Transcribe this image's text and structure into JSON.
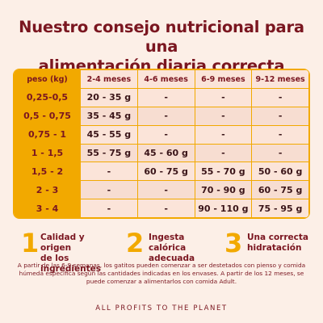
{
  "title_line1": "Nuestro consejo nutricional para una",
  "title_line2": "alimentación diaria correcta",
  "table": {
    "headers": [
      "peso (kg)",
      "2-4 meses",
      "4-6 meses",
      "6-9 meses",
      "9-12 meses"
    ],
    "rows": [
      [
        "0,25-0,5",
        "20 - 35 g",
        "-",
        "-",
        "-"
      ],
      [
        "0,5 - 0,75",
        "35 - 45 g",
        "-",
        "-",
        "-"
      ],
      [
        "0,75 - 1",
        "45 - 55 g",
        "-",
        "-",
        "-"
      ],
      [
        "1 - 1,5",
        "55 - 75 g",
        "45 - 60 g",
        "-",
        "-"
      ],
      [
        "1,5 - 2",
        "-",
        "60 - 75 g",
        "55 - 70 g",
        "50 - 60 g"
      ],
      [
        "2 - 3",
        "-",
        "-",
        "70 - 90 g",
        "60 - 75 g"
      ],
      [
        "3 - 4",
        "-",
        "-",
        "90 - 110 g",
        "75 - 95 g"
      ]
    ]
  },
  "benefits": [
    {
      "number": "1",
      "line1": "Calidad y origen",
      "line2": "de los ingredientes"
    },
    {
      "number": "2",
      "line1": "Ingesta calórica",
      "line2": "adecuada"
    },
    {
      "number": "3",
      "line1": "Una correcta",
      "line2": "hidratación"
    }
  ],
  "note": "A partir de las 6-9 semanas, los gatitos pueden comenzar a ser destetados con pienso y comida húmeda específica según las cantidades indicadas en los envases. A partir de los 12 meses, se puede comenzar a alimentarlos con comida Adult.",
  "footer": "ALL PROFITS TO THE PLANET",
  "colors": {
    "accent": "#f2a900",
    "text": "#7a1620",
    "background": "#fcefe7"
  }
}
